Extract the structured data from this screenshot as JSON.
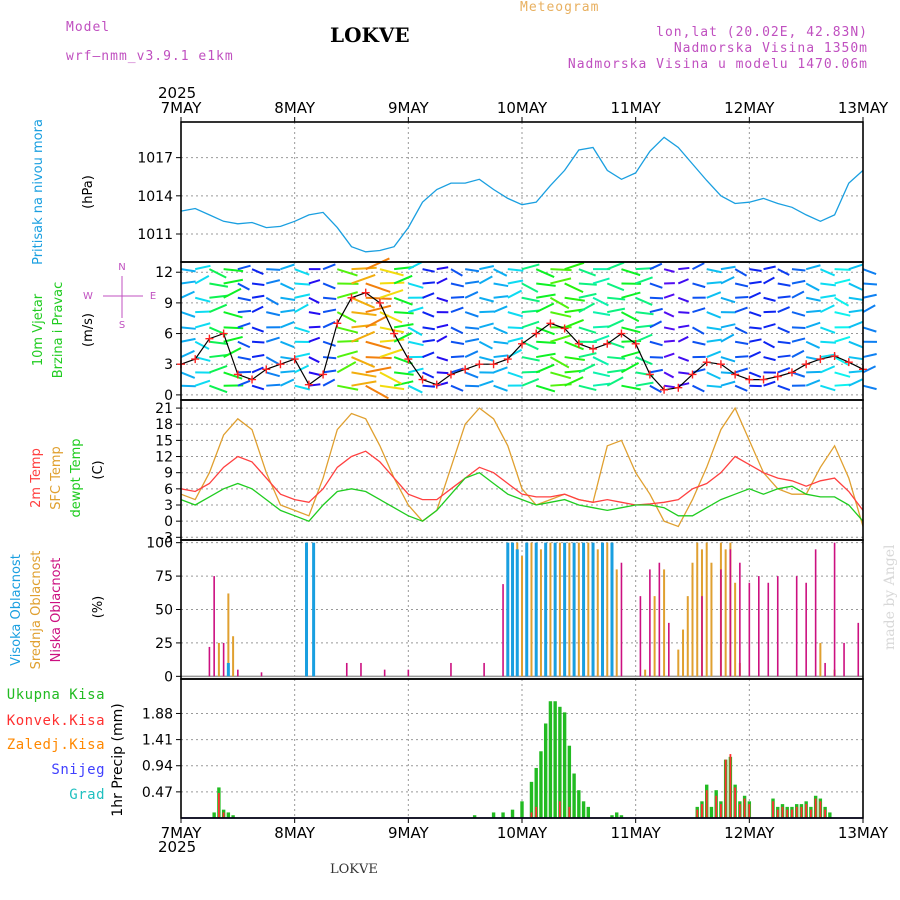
{
  "header": {
    "model_label": "Model",
    "model_name": "wrf–nmm_v3.9.1  e1km",
    "station": "LOKVE",
    "product": "Meteogram",
    "coords": "lon,lat (20.02E, 42.83N)",
    "elevation": "Nadmorska Visina 1350m",
    "model_elevation": "Nadmorska Visina u modelu 1470.06m"
  },
  "footer": {
    "station": "LOKVE",
    "credit": "made by Angel"
  },
  "time_axis": {
    "year": "2025",
    "labels": [
      "7MAY",
      "8MAY",
      "9MAY",
      "10MAY",
      "11MAY",
      "12MAY",
      "13MAY"
    ]
  },
  "colors": {
    "pressure": "#1a9fe0",
    "wind_speed": "#000000",
    "wind_marker": "#ff2020",
    "temp_2m": "#ff4040",
    "temp_sfc": "#e0a030",
    "dewpoint": "#20cc20",
    "cloud_high": "#1a9fe0",
    "cloud_mid": "#e0a030",
    "cloud_low": "#cc1080",
    "precip_total": "#22bb22",
    "precip_conv": "#ff3030",
    "precip_frz": "#ff8800",
    "snow": "#4040ff",
    "graupel": "#20c0c0",
    "header": "#c050c0",
    "product": "#e8b060"
  },
  "chart_data": [
    {
      "type": "line",
      "panel": "pressure",
      "ylabel_lines": [
        "Pritisak na nivou mora",
        "(hPa)"
      ],
      "ylim": [
        1008.8,
        1019.8
      ],
      "yticks": [
        1011,
        1014,
        1017
      ],
      "x_unit": "hours since 7MAY 00",
      "x": [
        0,
        3,
        6,
        9,
        12,
        15,
        18,
        21,
        24,
        27,
        30,
        33,
        36,
        39,
        42,
        45,
        48,
        51,
        54,
        57,
        60,
        63,
        66,
        69,
        72,
        75,
        78,
        81,
        84,
        87,
        90,
        93,
        96,
        99,
        102,
        105,
        108,
        111,
        114,
        117,
        120,
        123,
        126,
        129,
        132,
        135,
        138,
        141,
        144
      ],
      "series": [
        {
          "values": [
            1012.8,
            1013,
            1012.5,
            1012,
            1011.8,
            1011.9,
            1011.5,
            1011.6,
            1012,
            1012.5,
            1012.7,
            1011.5,
            1010,
            1009.6,
            1009.7,
            1010,
            1011.5,
            1013.5,
            1014.5,
            1015,
            1015,
            1015.3,
            1014.5,
            1013.8,
            1013.3,
            1013.5,
            1014.8,
            1016,
            1017.6,
            1017.8,
            1016,
            1015.3,
            1015.8,
            1017.5,
            1018.6,
            1017.8,
            1016.5,
            1015.2,
            1014,
            1013.4,
            1013.5,
            1013.8,
            1013.4,
            1013.1,
            1012.5,
            1012,
            1012.5,
            1015,
            1016
          ]
        }
      ]
    },
    {
      "type": "line",
      "panel": "wind",
      "ylabel_lines": [
        "10m Vjetar",
        "Brzina i Pravac",
        "(m/s)"
      ],
      "direction_key": [
        "N",
        "W",
        "E",
        "S"
      ],
      "ylim": [
        -0.5,
        13
      ],
      "yticks": [
        0,
        3,
        6,
        9,
        12
      ],
      "x": [
        0,
        3,
        6,
        9,
        12,
        15,
        18,
        21,
        24,
        27,
        30,
        33,
        36,
        39,
        42,
        45,
        48,
        51,
        54,
        57,
        60,
        63,
        66,
        69,
        72,
        75,
        78,
        81,
        84,
        87,
        90,
        93,
        96,
        99,
        102,
        105,
        108,
        111,
        114,
        117,
        120,
        123,
        126,
        129,
        132,
        135,
        138,
        141,
        144
      ],
      "series": [
        {
          "values": [
            3,
            3.5,
            5.5,
            6,
            2,
            1.5,
            2.5,
            3,
            3.5,
            1,
            2,
            7,
            9.5,
            10,
            9,
            6,
            3.5,
            1.5,
            1,
            2,
            2.5,
            3,
            3,
            3.5,
            5,
            6,
            7,
            6.5,
            5,
            4.5,
            5,
            6,
            5,
            2,
            0.5,
            0.7,
            2,
            3.2,
            3,
            2,
            1.5,
            1.5,
            1.8,
            2.2,
            3,
            3.5,
            3.8,
            3.2,
            2.5
          ]
        }
      ]
    },
    {
      "type": "line",
      "panel": "temperature",
      "ylabel_lines": [
        "2m Temp",
        "SFC Temp",
        "dewpt Temp",
        "(C)"
      ],
      "ylim": [
        -3.5,
        22.5
      ],
      "yticks": [
        -3,
        0,
        3,
        6,
        9,
        12,
        15,
        18,
        21
      ],
      "x": [
        0,
        3,
        6,
        9,
        12,
        15,
        18,
        21,
        24,
        27,
        30,
        33,
        36,
        39,
        42,
        45,
        48,
        51,
        54,
        57,
        60,
        63,
        66,
        69,
        72,
        75,
        78,
        81,
        84,
        87,
        90,
        93,
        96,
        99,
        102,
        105,
        108,
        111,
        114,
        117,
        120,
        123,
        126,
        129,
        132,
        135,
        138,
        141,
        144
      ],
      "series": [
        {
          "name": "2m Temp",
          "values": [
            6,
            5.5,
            7,
            10,
            12,
            11,
            8,
            5,
            4,
            3.5,
            6,
            10,
            12,
            13,
            11,
            8,
            5,
            4,
            4,
            6,
            8,
            10,
            9,
            7,
            5,
            4.5,
            4.5,
            5,
            4,
            3.5,
            4,
            3.5,
            3,
            3.2,
            3.5,
            4,
            6,
            7,
            9,
            12,
            10.5,
            9,
            8,
            7.5,
            6.5,
            7.5,
            8,
            5.5,
            2
          ]
        },
        {
          "name": "SFC Temp",
          "values": [
            5,
            4,
            9,
            16,
            19,
            17,
            9,
            3,
            2,
            1,
            8,
            17,
            20,
            19,
            14,
            8,
            3,
            0,
            2,
            10,
            18,
            21,
            19,
            14,
            6,
            3,
            4,
            5,
            4,
            3.5,
            14,
            15,
            9,
            5,
            0,
            -1,
            4,
            10,
            17,
            21,
            15,
            9,
            6,
            5,
            5,
            10,
            14,
            8,
            -1
          ]
        },
        {
          "name": "dewpt Temp",
          "values": [
            4,
            3,
            4.5,
            6,
            7,
            6,
            4,
            2,
            1,
            0,
            3,
            5.5,
            6,
            5.5,
            4,
            2.5,
            1,
            0,
            2,
            5,
            8,
            9,
            7,
            5,
            4,
            3,
            3.5,
            4,
            3,
            2.5,
            2,
            2.5,
            3,
            3,
            2.5,
            1,
            1,
            2.5,
            4,
            5,
            6,
            5,
            6,
            6.5,
            5,
            4.5,
            4.5,
            3,
            0
          ]
        }
      ]
    },
    {
      "type": "bar",
      "panel": "clouds",
      "ylabel_lines": [
        "Visoka Oblacnost",
        "Srednja Oblacnost",
        "Niska Oblacnost",
        "(%)"
      ],
      "ylim": [
        -2,
        102
      ],
      "yticks": [
        0,
        25,
        50,
        75,
        100
      ],
      "series": [
        {
          "name": "Visoka Oblacnost",
          "x": [
            10,
            26.5,
            28,
            69,
            70,
            71,
            73,
            75,
            77,
            79,
            81,
            83,
            85,
            87,
            89,
            91
          ],
          "values": [
            10,
            100,
            100,
            100,
            100,
            95,
            100,
            100,
            100,
            100,
            100,
            100,
            100,
            100,
            100,
            100
          ]
        },
        {
          "name": "Srednja Oblacnost",
          "x": [
            8,
            10,
            11,
            71,
            72,
            74,
            76,
            78,
            80,
            82,
            84,
            86,
            88,
            90,
            92,
            98,
            100,
            102,
            105,
            106,
            107,
            108,
            109,
            110,
            111,
            112,
            114,
            115,
            116,
            117,
            118,
            130,
            135,
            138
          ],
          "values": [
            25,
            62,
            30,
            100,
            90,
            100,
            95,
            100,
            100,
            100,
            100,
            100,
            95,
            100,
            80,
            5,
            60,
            80,
            20,
            35,
            60,
            85,
            100,
            95,
            100,
            85,
            100,
            95,
            100,
            70,
            10,
            0,
            25,
            5
          ]
        },
        {
          "name": "Niska Oblacnost",
          "x": [
            6,
            7,
            9,
            12,
            17,
            35,
            38,
            43,
            48,
            57,
            64,
            68,
            85,
            89,
            93,
            97,
            99,
            101,
            103,
            105,
            110,
            114,
            116,
            118,
            120,
            122,
            124,
            126,
            130,
            132,
            134,
            136,
            138,
            140,
            143
          ],
          "values": [
            22,
            75,
            25,
            5,
            3,
            10,
            10,
            5,
            5,
            10,
            10,
            69,
            95,
            90,
            85,
            60,
            80,
            85,
            40,
            0,
            60,
            80,
            95,
            85,
            70,
            75,
            70,
            75,
            75,
            70,
            95,
            10,
            100,
            25,
            40
          ]
        }
      ]
    },
    {
      "type": "bar",
      "panel": "precipitation",
      "ylabel_lines": [
        "1hr Precip (mm)"
      ],
      "legend": [
        "Ukupna Kisa",
        "Konvek.Kisa",
        "Zaledj.Kisa",
        "Snijeg",
        "Grad"
      ],
      "ylim": [
        0,
        2.5
      ],
      "yticks": [
        0.47,
        0.94,
        1.41,
        1.88
      ],
      "ytick_labels": [
        "0.47",
        "0.94",
        "1.41",
        "1.88"
      ],
      "series": [
        {
          "name": "Ukupna Kisa",
          "x": [
            7,
            8,
            9,
            10,
            11,
            62,
            66,
            68,
            70,
            72,
            74,
            75,
            76,
            77,
            78,
            79,
            80,
            81,
            82,
            83,
            84,
            85,
            86,
            91,
            92,
            93,
            109,
            110,
            111,
            112,
            113,
            114,
            115,
            116,
            117,
            118,
            119,
            120,
            125,
            126,
            127,
            128,
            129,
            130,
            131,
            132,
            133,
            134,
            135,
            136,
            137
          ],
          "values": [
            0.1,
            0.55,
            0.15,
            0.1,
            0.05,
            0.05,
            0.1,
            0.1,
            0.15,
            0.3,
            0.65,
            0.9,
            1.2,
            1.7,
            2.1,
            2.1,
            2.0,
            1.9,
            1.3,
            0.8,
            0.5,
            0.3,
            0.2,
            0.05,
            0.1,
            0.05,
            0.2,
            0.3,
            0.6,
            0.2,
            0.5,
            0.3,
            1.05,
            1.1,
            0.6,
            0.3,
            0.4,
            0.3,
            0.35,
            0.2,
            0.25,
            0.2,
            0.2,
            0.25,
            0.25,
            0.3,
            0.2,
            0.4,
            0.35,
            0.2,
            0.1
          ]
        },
        {
          "name": "Konvek.Kisa",
          "x": [
            8,
            9,
            74,
            75,
            80,
            82,
            109,
            110,
            111,
            113,
            114,
            115,
            116,
            117,
            118,
            119,
            120,
            125,
            126,
            127,
            128,
            129,
            130,
            131,
            132,
            133,
            134,
            135,
            136
          ],
          "values": [
            0.45,
            0.1,
            0.1,
            0.2,
            0.3,
            0.2,
            0.15,
            0.25,
            0.5,
            0.4,
            0.25,
            1.05,
            1.15,
            0.55,
            0.25,
            0.35,
            0.25,
            0.3,
            0.15,
            0.2,
            0.15,
            0.15,
            0.2,
            0.2,
            0.25,
            0.15,
            0.35,
            0.3,
            0.15
          ]
        }
      ]
    }
  ]
}
